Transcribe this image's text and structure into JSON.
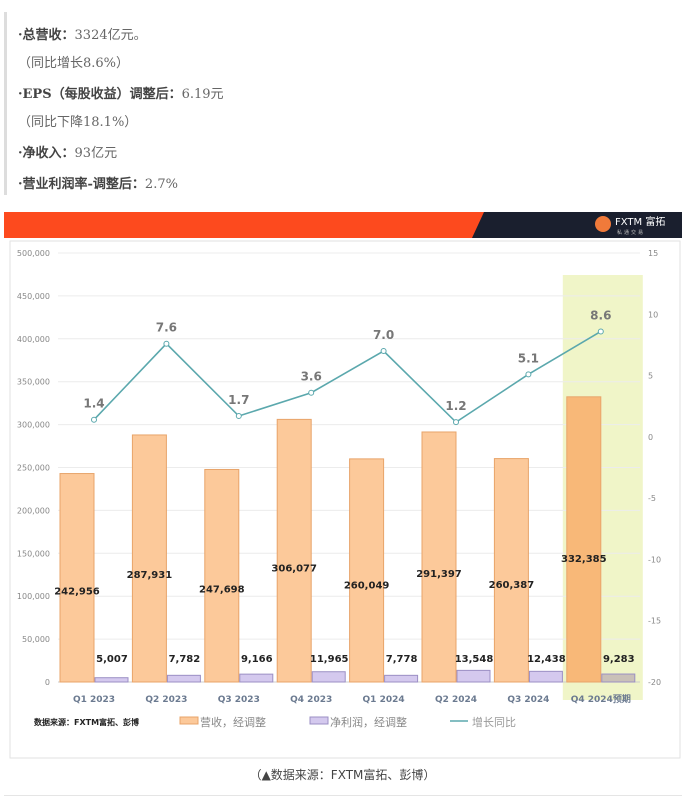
{
  "summary": {
    "revenue_label": "·总营收：",
    "revenue_value": "3324亿元。",
    "revenue_growth": "（同比增长8.6%）",
    "eps_label": "·EPS（每股收益）调整后：",
    "eps_value": "6.19元",
    "eps_change": "（同比下降18.1%）",
    "net_label": "·净收入：",
    "net_value": "93亿元",
    "margin_label": "·营业利润率-调整后：",
    "margin_value": "2.7%"
  },
  "header": {
    "brand": "FXTM 富拓",
    "brand_sub": "私通交易"
  },
  "caption": "（▲数据来源：FXTM富拓、彭博）",
  "colors": {
    "orange": "#fd4a1e",
    "navy": "#1a1f2e",
    "revenue": "#fcc99a",
    "net": "#d4c9ee",
    "line": "#5ba8ad",
    "highlight": "#f0f5c8"
  },
  "chart_data": {
    "type": "bar",
    "categories": [
      "Q1 2023",
      "Q2 2023",
      "Q3 2023",
      "Q4 2023",
      "Q1 2024",
      "Q2 2024",
      "Q3 2024",
      "Q4 2024预期"
    ],
    "series": [
      {
        "name": "营收，经调整",
        "type": "bar",
        "values": [
          242956,
          287931,
          247698,
          306077,
          260049,
          291397,
          260387,
          332385
        ],
        "labels": [
          "242,956",
          "287,931",
          "247,698",
          "306,077",
          "260,049",
          "291,397",
          "260,387",
          "332,385"
        ]
      },
      {
        "name": "净利润，经调整",
        "type": "bar",
        "values": [
          5007,
          7782,
          9166,
          11965,
          7778,
          13548,
          12438,
          9283
        ],
        "labels": [
          "5,007",
          "7,782",
          "9,166",
          "11,965",
          "7,778",
          "13,548",
          "12,438",
          "9,283"
        ]
      },
      {
        "name": "增长同比",
        "type": "line",
        "axis": "right",
        "values": [
          1.4,
          7.6,
          1.7,
          3.6,
          7.0,
          1.2,
          5.1,
          8.6
        ],
        "labels": [
          "1.4",
          "7.6",
          "1.7",
          "3.6",
          "7.0",
          "1.2",
          "5.1",
          "8.6"
        ]
      }
    ],
    "left_axis": {
      "ylim": [
        0,
        500000
      ],
      "ticks": [
        "0",
        "50,000",
        "100,000",
        "150,000",
        "200,000",
        "250,000",
        "300,000",
        "350,000",
        "400,000",
        "450,000",
        "500,000"
      ]
    },
    "right_axis": {
      "ylim": [
        -20,
        15
      ],
      "ticks": [
        "-20",
        "-15",
        "-10",
        "-5",
        "0",
        "5",
        "10",
        "15"
      ]
    },
    "source_note": "数据来源：FXTM富拓、彭博",
    "highlight_category": "Q4 2024预期",
    "grid": true,
    "legend": "bottom"
  }
}
